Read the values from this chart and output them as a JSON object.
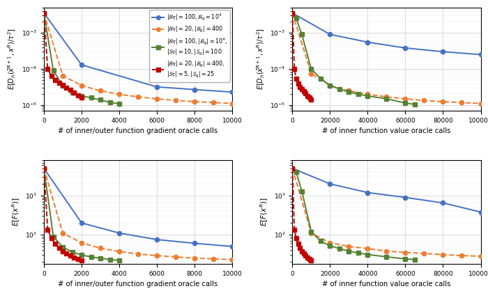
{
  "colors": [
    "#4472c4",
    "#ed7d31",
    "#548235",
    "#c00000"
  ],
  "styles": [
    "-",
    "--",
    "-",
    "--"
  ],
  "markers": [
    "o",
    "o",
    "s",
    "s"
  ],
  "top_left": {
    "xlabel": "# of inner/outer function gradient oracle calls",
    "ylabel_top": true,
    "xlim": [
      0,
      10000
    ],
    "ylim": [
      7e-06,
      0.005
    ],
    "blue_x": [
      0,
      2000,
      6000,
      8000,
      10000
    ],
    "blue_y": [
      0.0035,
      0.00013,
      3.2e-05,
      2.7e-05,
      2.3e-05
    ],
    "orange_x": [
      0,
      1000,
      2000,
      3000,
      4000,
      5000,
      6000,
      7000,
      8000,
      9000,
      10000
    ],
    "orange_y": [
      0.0035,
      6.5e-05,
      3.5e-05,
      2.5e-05,
      2e-05,
      1.7e-05,
      1.5e-05,
      1.35e-05,
      1.25e-05,
      1.18e-05,
      1.12e-05
    ],
    "green_x": [
      0,
      500,
      1000,
      1500,
      2000,
      2500,
      3000,
      3500,
      4000
    ],
    "green_y": [
      0.0035,
      9e-05,
      3.5e-05,
      2.2e-05,
      1.8e-05,
      1.6e-05,
      1.4e-05,
      1.2e-05,
      1.1e-05
    ],
    "red_x": [
      0,
      200,
      400,
      600,
      800,
      1000,
      1200,
      1400,
      1600,
      1800,
      2000
    ],
    "red_y": [
      0.0035,
      0.0001,
      6.5e-05,
      5e-05,
      4.2e-05,
      3.6e-05,
      3.1e-05,
      2.6e-05,
      2.2e-05,
      1.9e-05,
      1.6e-05
    ]
  },
  "top_right": {
    "xlabel": "# of inner function value oracle calls",
    "ylabel_top": true,
    "xlim": [
      0,
      100000
    ],
    "ylim": [
      7e-06,
      0.005
    ],
    "blue_x": [
      0,
      20000,
      40000,
      60000,
      80000,
      100000
    ],
    "blue_y": [
      0.0035,
      0.0009,
      0.00055,
      0.00038,
      0.0003,
      0.00025
    ],
    "orange_x": [
      0,
      10000,
      20000,
      30000,
      40000,
      50000,
      60000,
      70000,
      80000,
      90000,
      100000
    ],
    "orange_y": [
      0.0035,
      7.5e-05,
      3.5e-05,
      2.5e-05,
      2e-05,
      1.7e-05,
      1.5e-05,
      1.35e-05,
      1.25e-05,
      1.18e-05,
      1.12e-05
    ],
    "green_x": [
      0,
      2000,
      5000,
      10000,
      15000,
      20000,
      25000,
      30000,
      35000,
      40000,
      50000,
      60000,
      65000
    ],
    "green_y": [
      0.0035,
      0.0025,
      0.0009,
      0.0001,
      5.5e-05,
      3.5e-05,
      2.8e-05,
      2.3e-05,
      2e-05,
      1.8e-05,
      1.5e-05,
      1.15e-05,
      1.05e-05
    ],
    "red_x": [
      0,
      1000,
      2000,
      3000,
      4000,
      5000,
      6000,
      7000,
      8000,
      9000,
      10000
    ],
    "red_y": [
      0.0035,
      0.0001,
      5.5e-05,
      4e-05,
      3.2e-05,
      2.8e-05,
      2.4e-05,
      2.1e-05,
      1.8e-05,
      1.6e-05,
      1.4e-05
    ]
  },
  "bot_left": {
    "xlabel": "# of inner/outer function gradient oracle calls",
    "ylabel_top": false,
    "xlim": [
      0,
      10000
    ],
    "ylim": [
      18,
      8000
    ],
    "blue_x": [
      0,
      2000,
      4000,
      6000,
      8000,
      10000
    ],
    "blue_y": [
      5000,
      200,
      110,
      75,
      60,
      50
    ],
    "orange_x": [
      0,
      1000,
      2000,
      3000,
      4000,
      5000,
      6000,
      7000,
      8000,
      9000,
      10000
    ],
    "orange_y": [
      5000,
      110,
      62,
      45,
      37,
      32,
      29,
      27,
      25,
      24,
      23
    ],
    "green_x": [
      0,
      500,
      1000,
      1500,
      2000,
      2500,
      3000,
      3500,
      4000
    ],
    "green_y": [
      5000,
      90,
      48,
      36,
      30,
      27,
      25,
      23,
      22
    ],
    "red_x": [
      0,
      200,
      400,
      600,
      800,
      1000,
      1200,
      1400,
      1600,
      1800,
      2000
    ],
    "red_y": [
      5000,
      135,
      80,
      58,
      46,
      38,
      33,
      29,
      26,
      24,
      22
    ]
  },
  "bot_right": {
    "xlabel": "# of inner function value oracle calls",
    "ylabel_top": false,
    "xlim": [
      0,
      100000
    ],
    "ylim": [
      18,
      8000
    ],
    "blue_x": [
      0,
      20000,
      40000,
      60000,
      80000,
      100000
    ],
    "blue_y": [
      5000,
      2000,
      1200,
      900,
      650,
      380
    ],
    "orange_x": [
      0,
      10000,
      20000,
      30000,
      40000,
      50000,
      60000,
      70000,
      80000,
      90000,
      100000
    ],
    "orange_y": [
      5000,
      110,
      62,
      50,
      44,
      38,
      35,
      33,
      31,
      29,
      28
    ],
    "green_x": [
      0,
      2000,
      5000,
      10000,
      15000,
      20000,
      25000,
      30000,
      35000,
      40000,
      50000,
      60000,
      65000
    ],
    "green_y": [
      5000,
      4000,
      1300,
      120,
      68,
      52,
      44,
      38,
      34,
      31,
      27,
      24,
      23
    ],
    "red_x": [
      0,
      1000,
      2000,
      3000,
      4000,
      5000,
      6000,
      7000,
      8000,
      9000,
      10000
    ],
    "red_y": [
      5000,
      135,
      80,
      58,
      46,
      38,
      33,
      29,
      26,
      24,
      22
    ]
  },
  "legend_labels_line1": [
    "$|\\mathcal{B}_{\\nabla}| = 100, \\mathcal{B}_g = 10^4$",
    "$|\\mathcal{B}_{\\nabla}| = 20, |\\mathcal{B}_g| = 400$",
    "$|\\mathcal{B}_{\\nabla}| = 100, |\\mathcal{B}_g| = 10^4,$",
    "$|\\mathcal{B}_{\\nabla}| = 20, |\\mathcal{B}_g| = 400,$"
  ],
  "legend_labels_line2": [
    "",
    "",
    "$|\\mathcal{S}_{\\nabla}| = 10, |\\mathcal{S}_g| = 100$",
    "$|\\mathcal{S}_{\\nabla}| = 5, |\\mathcal{S}_g| = 25$"
  ]
}
